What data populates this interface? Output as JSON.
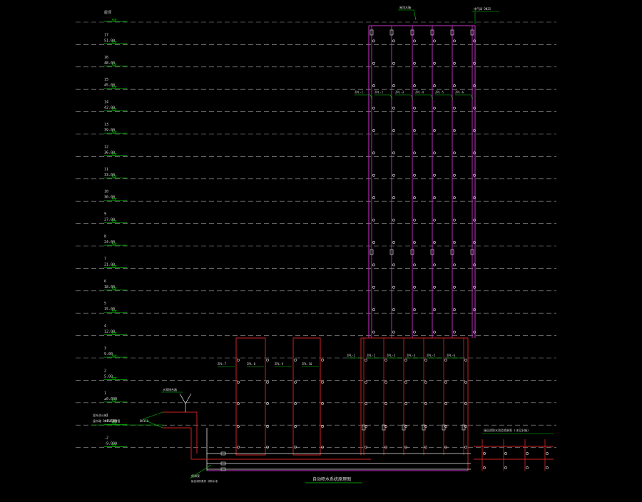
{
  "title": "自动喷水系统原理图",
  "colors": {
    "background": "#000000",
    "floor_line": "#9a9a9a",
    "level_mark": "#00cc00",
    "label_text": "#dcdcdc",
    "high_zone_pipe": "#cc33cc",
    "low_zone_pipe": "#cc2222",
    "node": "#e8e8e8"
  },
  "floors": [
    {
      "name": "屋顶",
      "elevation": ""
    },
    {
      "name": "17",
      "elevation": "51.00"
    },
    {
      "name": "16",
      "elevation": "48.00"
    },
    {
      "name": "15",
      "elevation": "45.00"
    },
    {
      "name": "14",
      "elevation": "42.00"
    },
    {
      "name": "13",
      "elevation": "39.00"
    },
    {
      "name": "12",
      "elevation": "36.00"
    },
    {
      "name": "11",
      "elevation": "33.00"
    },
    {
      "name": "10",
      "elevation": "30.00"
    },
    {
      "name": "9",
      "elevation": "27.00"
    },
    {
      "name": "8",
      "elevation": "24.00"
    },
    {
      "name": "7",
      "elevation": "21.00"
    },
    {
      "name": "6",
      "elevation": "18.00"
    },
    {
      "name": "5",
      "elevation": "15.00"
    },
    {
      "name": "4",
      "elevation": "12.00"
    },
    {
      "name": "3",
      "elevation": "9.00"
    },
    {
      "name": "2",
      "elevation": "5.00"
    },
    {
      "name": "1",
      "elevation": "±0.000"
    },
    {
      "name": "-1",
      "elevation": "-4.500"
    },
    {
      "name": "-2",
      "elevation": "-9.000"
    }
  ],
  "high_zone_risers": [
    "ZPL-1",
    "ZPL-2",
    "ZPL-3",
    "ZPL-4",
    "ZPL-5",
    "ZPL-6"
  ],
  "low_zone_risers": [
    "ZPL-1",
    "ZPL-2",
    "ZPL-3",
    "ZPL-4",
    "ZPL-5",
    "ZPL-6"
  ],
  "podium_risers": [
    "ZPL-7",
    "ZPL-8",
    "ZPL-9",
    "ZPL-10"
  ],
  "annotations": {
    "roof_tank": "屋顶水箱",
    "roof_exhaust": "排气阀 DN25",
    "pump_adapter": "水泵接合器",
    "outdoor_note_1": "室外消火栓",
    "outdoor_note_2": "接市政 DN150消防管",
    "outdoor_note_3": "DN150",
    "pump_room_note": "接自消防泵房 消防水池",
    "pump_room_label": "喷淋泵",
    "right_note": "接自消防水池及喷淋泵 (详见水施)",
    "pipe_dn": "DN150",
    "valve_tag": "信号阀"
  }
}
